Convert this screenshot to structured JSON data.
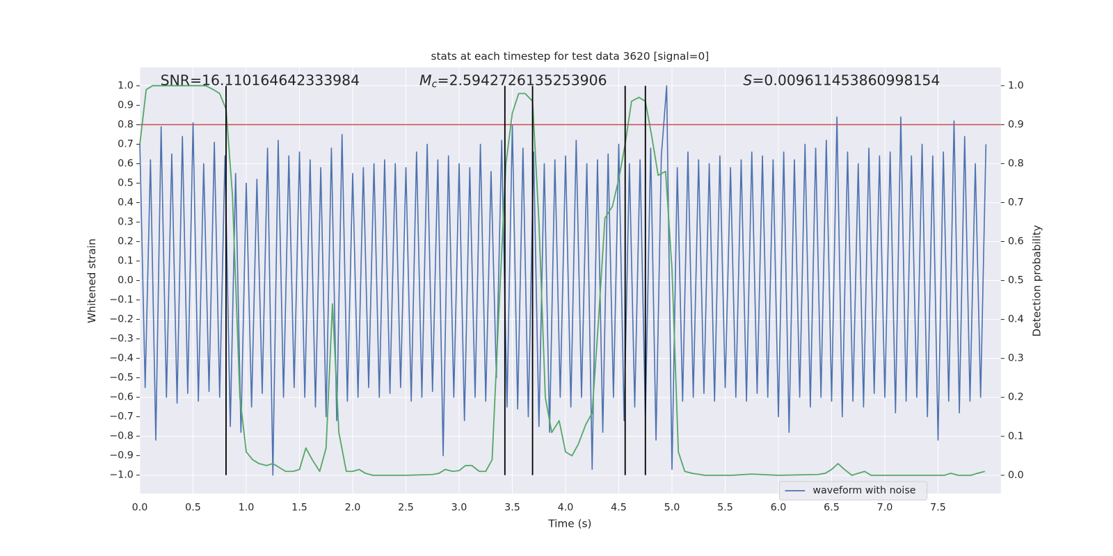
{
  "chart_data": {
    "type": "line",
    "title": "stats at each timestep for test data 3620 [signal=0]",
    "xlabel": "Time (s)",
    "ylabel": "Whitened strain",
    "y2label": "Detection probability",
    "annotations": {
      "snr": "SNR=16.110164642333984",
      "mc_symbol": "M",
      "mc_sub": "c",
      "mc_value": "=2.5942726135253906",
      "s_symbol": "S",
      "s_value": "=0.009611453860998154"
    },
    "xlim": [
      0,
      8.09
    ],
    "ylim": [
      -1.095,
      1.095
    ],
    "y2lim": [
      -0.047,
      1.047
    ],
    "xticks": [
      {
        "value": 0,
        "label": "0.0"
      },
      0.5,
      {
        "value": 1,
        "label": "1.0"
      },
      1.5,
      {
        "value": 2,
        "label": "2.0"
      },
      2.5,
      {
        "value": 3,
        "label": "3.0"
      },
      3.5,
      {
        "value": 4,
        "label": "4.0"
      },
      4.5,
      {
        "value": 5,
        "label": "5.0"
      },
      5.5,
      {
        "value": 6,
        "label": "6.0"
      },
      6.5,
      {
        "value": 7,
        "label": "7.0"
      },
      7.5
    ],
    "yticks": [
      {
        "value": -1,
        "label": "−1.0"
      },
      {
        "value": -0.9,
        "label": "−0.9"
      },
      {
        "value": -0.8,
        "label": "−0.8"
      },
      {
        "value": -0.7,
        "label": "−0.7"
      },
      {
        "value": -0.6,
        "label": "−0.6"
      },
      {
        "value": -0.5,
        "label": "−0.5"
      },
      {
        "value": -0.4,
        "label": "−0.4"
      },
      {
        "value": -0.3,
        "label": "−0.3"
      },
      {
        "value": -0.2,
        "label": "−0.2"
      },
      {
        "value": -0.1,
        "label": "−0.1"
      },
      {
        "value": 0,
        "label": "0.0"
      },
      0.1,
      0.2,
      0.3,
      0.4,
      0.5,
      0.6,
      0.7,
      0.8,
      0.9,
      {
        "value": 1,
        "label": "1.0"
      }
    ],
    "y2ticks": [
      {
        "value": 0,
        "label": "0.0"
      },
      0.1,
      0.2,
      0.3,
      0.4,
      0.5,
      0.6,
      0.7,
      0.8,
      0.9,
      {
        "value": 1,
        "label": "1.0"
      }
    ],
    "grid": true,
    "legend": "lower right",
    "threshold": {
      "value": 0.9,
      "color": "#c44e52",
      "axis": "y2"
    },
    "vlines": {
      "x": [
        0.81,
        3.43,
        3.69,
        4.56,
        4.75
      ],
      "color": "#000000"
    },
    "series": [
      {
        "name": "waveform with noise",
        "color": "#4c72b0",
        "x": [
          0,
          0.05,
          0.1,
          0.15,
          0.2,
          0.25,
          0.3,
          0.35,
          0.4,
          0.45,
          0.5,
          0.55,
          0.6,
          0.65,
          0.7,
          0.75,
          0.8,
          0.85,
          0.9,
          0.95,
          1,
          1.05,
          1.1,
          1.15,
          1.2,
          1.25,
          1.3,
          1.35,
          1.4,
          1.45,
          1.5,
          1.55,
          1.6,
          1.65,
          1.7,
          1.75,
          1.8,
          1.85,
          1.9,
          1.95,
          2,
          2.05,
          2.1,
          2.15,
          2.2,
          2.25,
          2.3,
          2.35,
          2.4,
          2.45,
          2.5,
          2.55,
          2.6,
          2.65,
          2.7,
          2.75,
          2.8,
          2.85,
          2.9,
          2.95,
          3,
          3.05,
          3.1,
          3.15,
          3.2,
          3.25,
          3.3,
          3.35,
          3.4,
          3.45,
          3.5,
          3.55,
          3.6,
          3.65,
          3.7,
          3.75,
          3.8,
          3.85,
          3.9,
          3.95,
          4,
          4.05,
          4.1,
          4.15,
          4.2,
          4.25,
          4.3,
          4.35,
          4.4,
          4.45,
          4.5,
          4.55,
          4.6,
          4.65,
          4.7,
          4.75,
          4.8,
          4.85,
          4.9,
          4.95,
          5,
          5.05,
          5.1,
          5.15,
          5.2,
          5.25,
          5.3,
          5.35,
          5.4,
          5.45,
          5.5,
          5.55,
          5.6,
          5.65,
          5.7,
          5.75,
          5.8,
          5.85,
          5.9,
          5.95,
          6,
          6.05,
          6.1,
          6.15,
          6.2,
          6.25,
          6.3,
          6.35,
          6.4,
          6.45,
          6.5,
          6.55,
          6.6,
          6.65,
          6.7,
          6.75,
          6.8,
          6.85,
          6.9,
          6.95,
          7,
          7.05,
          7.1,
          7.15,
          7.2,
          7.25,
          7.3,
          7.35,
          7.4,
          7.45,
          7.5,
          7.55,
          7.6,
          7.65,
          7.7,
          7.75,
          7.8,
          7.85,
          7.9,
          7.95
        ],
        "values": [
          0.7,
          -0.55,
          0.62,
          -0.82,
          0.79,
          -0.6,
          0.65,
          -0.63,
          0.74,
          -0.58,
          0.81,
          -0.62,
          0.6,
          -0.57,
          0.71,
          -0.6,
          0.64,
          -0.75,
          0.55,
          -0.78,
          0.5,
          -0.65,
          0.52,
          -0.58,
          0.68,
          -1.0,
          0.72,
          -0.6,
          0.64,
          -0.55,
          0.66,
          -0.6,
          0.62,
          -0.65,
          0.58,
          -0.7,
          0.68,
          -0.72,
          0.75,
          -0.62,
          0.55,
          -0.6,
          0.58,
          -0.55,
          0.6,
          -0.6,
          0.62,
          -0.58,
          0.6,
          -0.55,
          0.58,
          -0.62,
          0.66,
          -0.6,
          0.7,
          -0.57,
          0.62,
          -0.9,
          0.64,
          -0.6,
          0.6,
          -0.72,
          0.58,
          -0.6,
          0.7,
          -0.62,
          0.56,
          -0.5,
          0.72,
          -0.65,
          0.8,
          -0.66,
          0.68,
          -0.7,
          0.66,
          -0.75,
          0.6,
          -0.78,
          0.62,
          -0.6,
          0.64,
          -0.65,
          0.72,
          -0.6,
          0.6,
          -0.97,
          0.62,
          -0.78,
          0.65,
          -0.6,
          0.7,
          -0.72,
          0.6,
          -0.65,
          0.62,
          -0.7,
          0.68,
          -0.82,
          0.64,
          1.0,
          -0.97,
          0.58,
          -0.62,
          0.66,
          -0.6,
          0.62,
          -0.58,
          0.6,
          -0.62,
          0.64,
          -0.55,
          0.58,
          -0.6,
          0.62,
          -0.62,
          0.66,
          -0.58,
          0.64,
          -0.6,
          0.62,
          -0.7,
          0.66,
          -0.78,
          0.62,
          -0.6,
          0.7,
          -0.65,
          0.68,
          -0.6,
          0.72,
          -0.62,
          0.84,
          -0.7,
          0.66,
          -0.62,
          0.6,
          -0.65,
          0.68,
          -0.58,
          0.64,
          -0.6,
          0.66,
          -0.68,
          0.84,
          -0.62,
          0.64,
          -0.6,
          0.7,
          -0.7,
          0.64,
          -0.82,
          0.66,
          -0.62,
          0.82,
          -0.68,
          0.74,
          -0.62,
          0.6,
          -0.6,
          0.7
        ]
      },
      {
        "color": "#55a868",
        "axis": "y2",
        "x": [
          0,
          0.06,
          0.12,
          0.5,
          0.62,
          0.69,
          0.75,
          0.81,
          0.87,
          0.94,
          1.0,
          1.06,
          1.12,
          1.19,
          1.25,
          1.31,
          1.37,
          1.44,
          1.5,
          1.56,
          1.62,
          1.69,
          1.75,
          1.81,
          1.87,
          1.94,
          2.0,
          2.06,
          2.12,
          2.19,
          2.5,
          2.75,
          2.81,
          2.87,
          2.94,
          3.0,
          3.06,
          3.12,
          3.19,
          3.25,
          3.31,
          3.37,
          3.44,
          3.5,
          3.56,
          3.62,
          3.69,
          3.75,
          3.81,
          3.87,
          3.94,
          4.0,
          4.06,
          4.12,
          4.19,
          4.25,
          4.31,
          4.37,
          4.44,
          4.5,
          4.56,
          4.62,
          4.69,
          4.75,
          4.81,
          4.87,
          4.94,
          5.0,
          5.06,
          5.12,
          5.19,
          5.31,
          5.56,
          5.75,
          6.0,
          6.37,
          6.44,
          6.5,
          6.56,
          6.62,
          6.69,
          6.75,
          6.81,
          6.87,
          7.0,
          7.56,
          7.62,
          7.69,
          7.81,
          7.87,
          7.94
        ],
        "values": [
          0.85,
          0.99,
          1.0,
          1.0,
          1.0,
          0.99,
          0.98,
          0.94,
          0.72,
          0.2,
          0.06,
          0.04,
          0.03,
          0.025,
          0.03,
          0.02,
          0.01,
          0.01,
          0.015,
          0.07,
          0.04,
          0.01,
          0.07,
          0.44,
          0.11,
          0.01,
          0.01,
          0.015,
          0.005,
          0.0,
          0.0,
          0.002,
          0.005,
          0.015,
          0.01,
          0.012,
          0.025,
          0.025,
          0.01,
          0.01,
          0.04,
          0.4,
          0.8,
          0.93,
          0.98,
          0.98,
          0.96,
          0.65,
          0.2,
          0.11,
          0.14,
          0.06,
          0.05,
          0.08,
          0.13,
          0.16,
          0.4,
          0.66,
          0.69,
          0.76,
          0.85,
          0.96,
          0.97,
          0.96,
          0.87,
          0.77,
          0.78,
          0.53,
          0.06,
          0.01,
          0.005,
          0.0,
          0.0,
          0.003,
          0.0,
          0.002,
          0.005,
          0.015,
          0.03,
          0.015,
          0.0,
          0.005,
          0.01,
          0.0,
          0.0,
          0.0,
          0.005,
          0.0,
          0.0,
          0.005,
          0.01
        ]
      }
    ]
  }
}
